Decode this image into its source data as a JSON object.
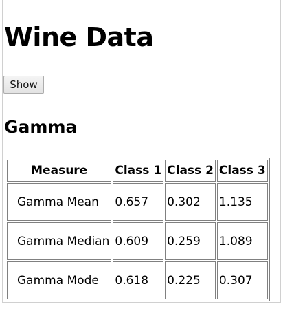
{
  "page": {
    "title": "Wine Data",
    "show_button_label": "Show",
    "section_title": "Gamma"
  },
  "table": {
    "headers": [
      "Measure",
      "Class 1",
      "Class 2",
      "Class 3"
    ],
    "rows": [
      {
        "measure": "Gamma Mean",
        "class1": "0.657",
        "class2": "0.302",
        "class3": "1.135"
      },
      {
        "measure": "Gamma Median",
        "class1": "0.609",
        "class2": "0.259",
        "class3": "1.089"
      },
      {
        "measure": "Gamma Mode",
        "class1": "0.618",
        "class2": "0.225",
        "class3": "0.307"
      }
    ]
  }
}
